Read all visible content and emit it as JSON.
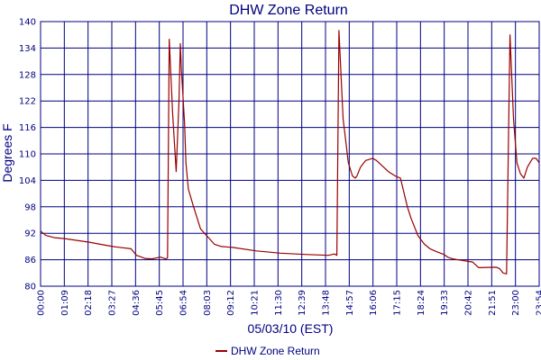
{
  "chart_data": {
    "type": "line",
    "title": "DHW Zone Return",
    "xlabel": "05/03/10 (EST)",
    "ylabel": "Degrees F",
    "xlim": [
      "00:00",
      "23:54"
    ],
    "ylim": [
      80,
      140
    ],
    "x_ticks": [
      "00:00",
      "01:09",
      "02:18",
      "03:27",
      "04:36",
      "05:45",
      "06:54",
      "08:03",
      "09:12",
      "10:21",
      "11:30",
      "12:39",
      "13:48",
      "14:57",
      "16:06",
      "17:15",
      "18:24",
      "19:33",
      "20:42",
      "21:51",
      "23:00",
      "23:54"
    ],
    "y_ticks": [
      "80",
      "86",
      "92",
      "98",
      "104",
      "110",
      "116",
      "122",
      "128",
      "134",
      "140"
    ],
    "grid": true,
    "legend_position": "bottom-center",
    "series": [
      {
        "name": "DHW Zone Return",
        "color": "#990000",
        "x": [
          "00:00",
          "00:15",
          "00:40",
          "01:09",
          "02:18",
          "03:27",
          "04:20",
          "04:36",
          "05:00",
          "05:20",
          "05:45",
          "06:00",
          "06:05",
          "06:10",
          "06:20",
          "06:30",
          "06:38",
          "06:42",
          "06:45",
          "06:54",
          "06:58",
          "07:05",
          "07:20",
          "07:40",
          "08:03",
          "08:20",
          "08:40",
          "09:12",
          "10:21",
          "11:30",
          "12:39",
          "13:48",
          "14:05",
          "14:12",
          "14:18",
          "14:30",
          "14:45",
          "14:57",
          "15:05",
          "15:10",
          "15:20",
          "15:35",
          "15:55",
          "16:06",
          "16:20",
          "16:40",
          "17:00",
          "17:15",
          "17:35",
          "17:45",
          "17:55",
          "18:05",
          "18:24",
          "18:40",
          "19:00",
          "19:20",
          "19:33",
          "19:45",
          "20:00",
          "20:42",
          "21:00",
          "21:51",
          "22:00",
          "22:10",
          "22:20",
          "22:30",
          "22:40",
          "22:50",
          "23:00",
          "23:10",
          "23:20",
          "23:35",
          "23:45",
          "23:54"
        ],
        "y": [
          92.5,
          91.5,
          91,
          90.8,
          90,
          89,
          88.5,
          87,
          86.3,
          86.2,
          86.6,
          86.2,
          86.4,
          136,
          119,
          106,
          122,
          135,
          129,
          117,
          108,
          102,
          98,
          93,
          91,
          89.5,
          89,
          88.8,
          88,
          87.5,
          87.2,
          87,
          87.3,
          87,
          138,
          118,
          108,
          105,
          104.5,
          105,
          107,
          108.5,
          109,
          108.5,
          107.5,
          106,
          105,
          104.5,
          98,
          95.5,
          93.5,
          91.5,
          89.5,
          88.5,
          87.8,
          87.2,
          86.5,
          86.2,
          86,
          85.5,
          84.2,
          84.3,
          84,
          83,
          82.8,
          137,
          118,
          108,
          105.5,
          104.5,
          107,
          109,
          109,
          108
        ]
      }
    ]
  }
}
